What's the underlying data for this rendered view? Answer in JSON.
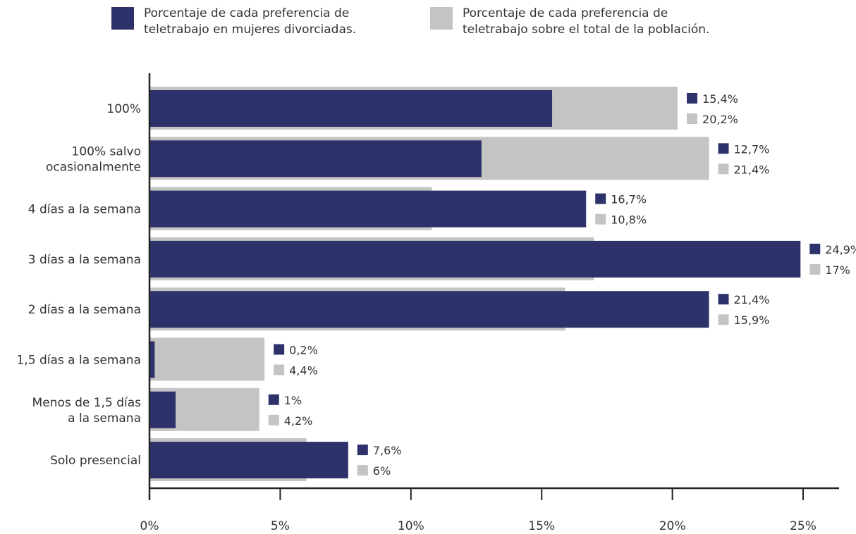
{
  "colors": {
    "divorced": "#2e326a",
    "population": "#c4c4c4",
    "axis": "#222222"
  },
  "legend": [
    {
      "label": "Porcentaje de cada preferencia de\nteletrabajo en mujeres divorciadas.",
      "color": "#2e326a"
    },
    {
      "label": "Porcentaje de cada preferencia de\nteletrabajo sobre el total de la población.",
      "color": "#c4c4c4"
    }
  ],
  "chart_data": {
    "type": "bar",
    "orientation": "horizontal",
    "categories": [
      [
        "100%"
      ],
      [
        "100% salvo",
        "ocasionalmente"
      ],
      [
        "4 días a la semana"
      ],
      [
        "3 días a la semana"
      ],
      [
        "2 días a la semana"
      ],
      [
        "1,5 días a la semana"
      ],
      [
        "Menos de 1,5 días",
        "a la semana"
      ],
      [
        "Solo presencial"
      ]
    ],
    "series": [
      {
        "name": "Porcentaje de cada preferencia de teletrabajo en mujeres divorciadas.",
        "values": [
          15.4,
          12.7,
          16.7,
          24.9,
          21.4,
          0.2,
          1,
          7.6
        ],
        "labels": [
          "15,4%",
          "12,7%",
          "16,7%",
          "24,9%",
          "21,4%",
          "0,2%",
          "1%",
          "7,6%"
        ]
      },
      {
        "name": "Porcentaje de cada preferencia de teletrabajo sobre el total de la población.",
        "values": [
          20.2,
          21.4,
          10.8,
          17,
          15.9,
          4.4,
          4.2,
          6
        ],
        "labels": [
          "20,2%",
          "21,4%",
          "10,8%",
          "17%",
          "15,9%",
          "4,4%",
          "4,2%",
          "6%"
        ]
      }
    ],
    "xlim": [
      0,
      25
    ],
    "xticks": [
      0,
      5,
      10,
      15,
      20,
      25
    ],
    "xtick_labels": [
      "0%",
      "5%",
      "10%",
      "15%",
      "20%",
      "25%"
    ],
    "grid": false,
    "legend_position": "top"
  }
}
